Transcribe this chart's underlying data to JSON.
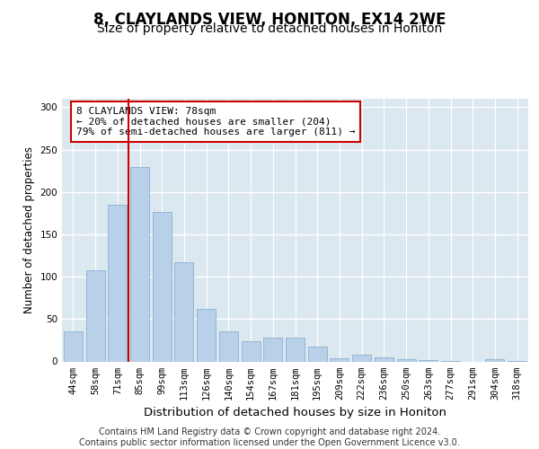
{
  "title1": "8, CLAYLANDS VIEW, HONITON, EX14 2WE",
  "title2": "Size of property relative to detached houses in Honiton",
  "xlabel": "Distribution of detached houses by size in Honiton",
  "ylabel": "Number of detached properties",
  "categories": [
    "44sqm",
    "58sqm",
    "71sqm",
    "85sqm",
    "99sqm",
    "113sqm",
    "126sqm",
    "140sqm",
    "154sqm",
    "167sqm",
    "181sqm",
    "195sqm",
    "209sqm",
    "222sqm",
    "236sqm",
    "250sqm",
    "263sqm",
    "277sqm",
    "291sqm",
    "304sqm",
    "318sqm"
  ],
  "values": [
    35,
    108,
    185,
    229,
    176,
    117,
    62,
    35,
    24,
    28,
    28,
    18,
    4,
    8,
    5,
    3,
    2,
    1,
    0,
    3,
    1
  ],
  "bar_color": "#b8d0e8",
  "bar_edge_color": "#8ab0d0",
  "vline_position": 2.5,
  "vline_color": "#cc0000",
  "annotation_text": "8 CLAYLANDS VIEW: 78sqm\n← 20% of detached houses are smaller (204)\n79% of semi-detached houses are larger (811) →",
  "annotation_box_color": "white",
  "annotation_box_edge_color": "#cc0000",
  "footnote": "Contains HM Land Registry data © Crown copyright and database right 2024.\nContains public sector information licensed under the Open Government Licence v3.0.",
  "ylim": [
    0,
    310
  ],
  "background_color": "#dce8f0",
  "grid_color": "white",
  "title1_fontsize": 12,
  "title2_fontsize": 10,
  "xlabel_fontsize": 9.5,
  "ylabel_fontsize": 8.5,
  "tick_fontsize": 7.5,
  "annotation_fontsize": 8,
  "footnote_fontsize": 7
}
